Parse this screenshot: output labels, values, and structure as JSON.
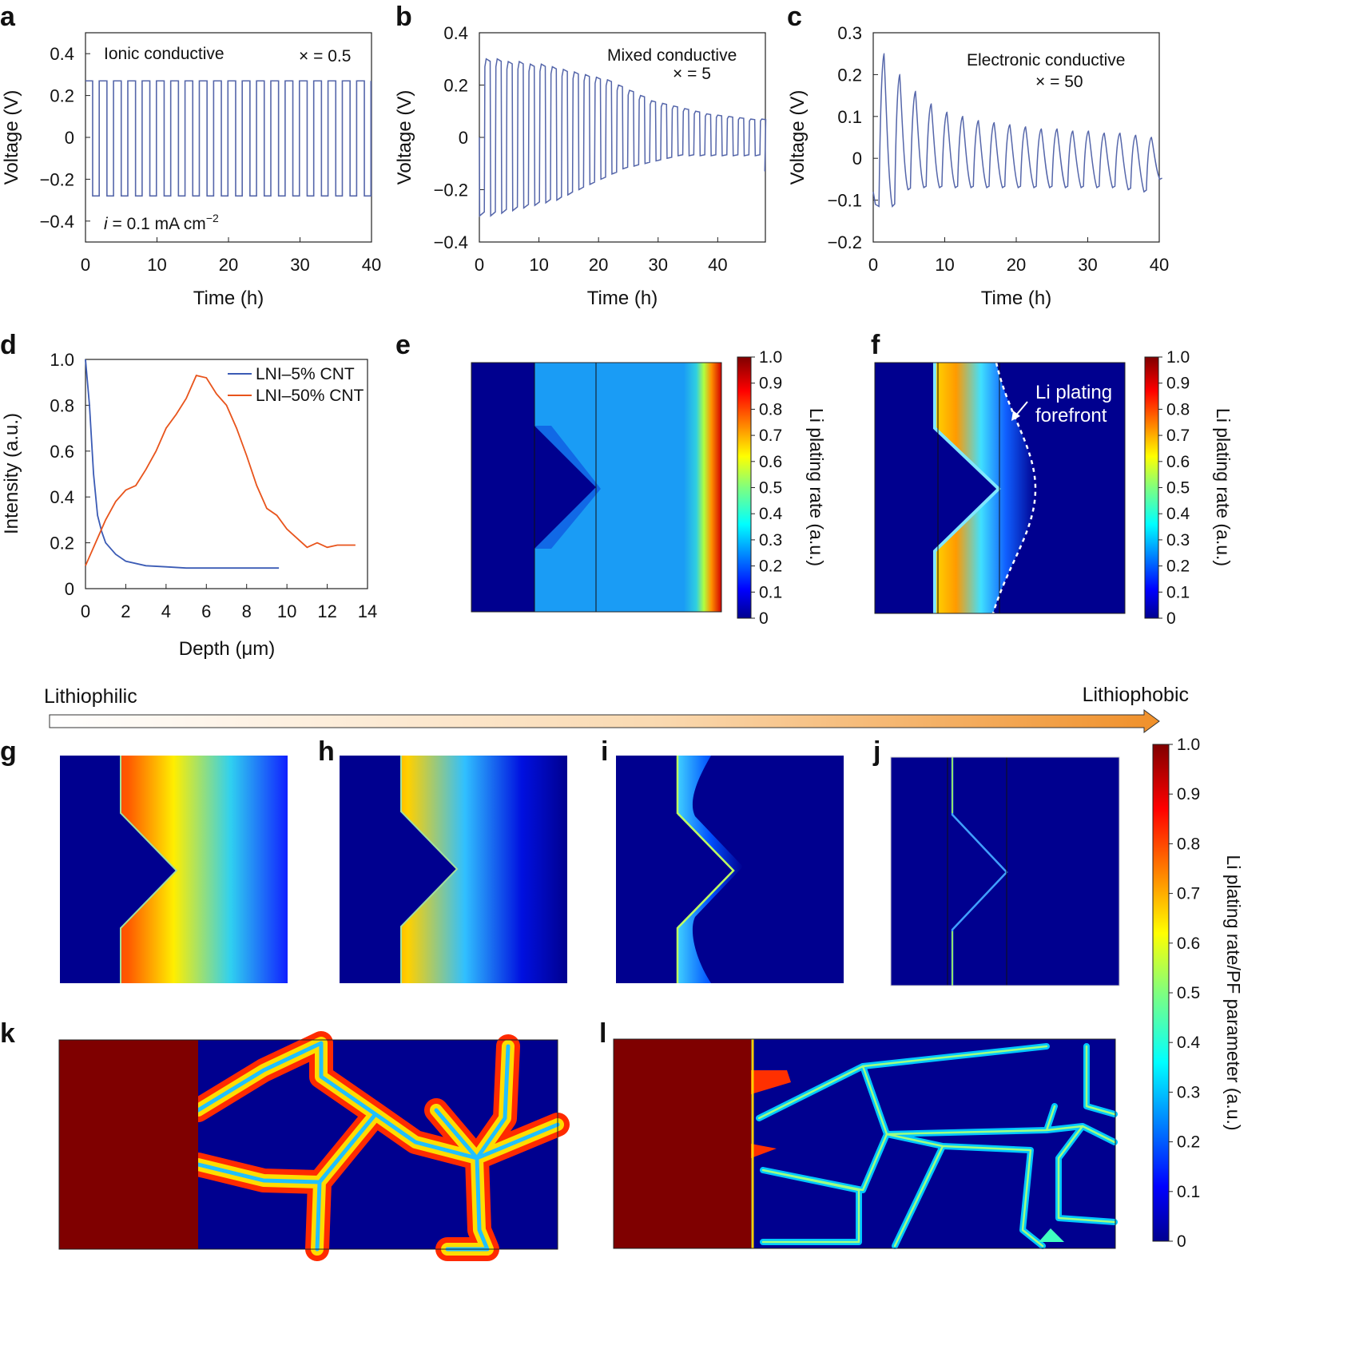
{
  "panel_labels": [
    "a",
    "b",
    "c",
    "d",
    "e",
    "f",
    "g",
    "h",
    "i",
    "j",
    "k",
    "l"
  ],
  "colors": {
    "line_blue": "#5566aa",
    "line_d_blue": "#3b5bb5",
    "line_d_orange": "#e8541c",
    "map_background": "#00008f",
    "dendrite_red": "#7f0000",
    "arrow_start": "#ffffff",
    "arrow_end": "#f0902a"
  },
  "panels": {
    "a": {
      "title": "Ionic conductive",
      "factor": "× = 0.5",
      "current_prefix": "i",
      "current_text": " = 0.1 mA cm",
      "current_sup": "−2",
      "ylabel": "Voltage (V)",
      "xlabel": "Time (h)",
      "xticks": [
        "0",
        "10",
        "20",
        "30",
        "40"
      ],
      "yticks": [
        "0.4",
        "0.2",
        "0",
        "−0.2",
        "−0.4"
      ]
    },
    "b": {
      "title": "Mixed conductive",
      "factor": "× = 5",
      "ylabel": "Voltage (V)",
      "xlabel": "Time (h)",
      "xticks": [
        "0",
        "10",
        "20",
        "30",
        "40"
      ],
      "yticks": [
        "0.4",
        "0.2",
        "0",
        "−0.2",
        "−0.4"
      ]
    },
    "c": {
      "title": "Electronic conductive",
      "factor": "× = 50",
      "ylabel": "Voltage (V)",
      "xlabel": "Time (h)",
      "xticks": [
        "0",
        "10",
        "20",
        "30",
        "40"
      ],
      "yticks": [
        "0.3",
        "0.2",
        "0.1",
        "0",
        "−0.1",
        "−0.2"
      ]
    },
    "d": {
      "ylabel": "Intensity (a.u.)",
      "xlabel": "Depth (μm)",
      "xticks": [
        "0",
        "2",
        "4",
        "6",
        "8",
        "10",
        "12",
        "14"
      ],
      "yticks": [
        "1.0",
        "0.8",
        "0.6",
        "0.4",
        "0.2",
        "0"
      ]
    },
    "f": {
      "annotation_line1": "Li plating",
      "annotation_line2": "forefront"
    }
  },
  "colorbar_small": {
    "label": "Li plating rate (a.u.)",
    "ticks": [
      "1.0",
      "0.9",
      "0.8",
      "0.7",
      "0.6",
      "0.5",
      "0.4",
      "0.3",
      "0.2",
      "0.1",
      "0"
    ]
  },
  "colorbar_large": {
    "label": "Li plating rate/PF parameter (a.u.)",
    "ticks": [
      "1.0",
      "0.9",
      "0.8",
      "0.7",
      "0.6",
      "0.5",
      "0.4",
      "0.3",
      "0.2",
      "0.1",
      "0"
    ]
  },
  "gradient_arrow": {
    "left_label": "Lithiophilic",
    "right_label": "Lithiophobic"
  },
  "chart_data": [
    {
      "panel": "a",
      "type": "line",
      "title": "Ionic conductive",
      "xlabel": "Time (h)",
      "ylabel": "Voltage (V)",
      "xlim": [
        0,
        40
      ],
      "ylim": [
        -0.5,
        0.5
      ],
      "series": [
        {
          "cycles": 20,
          "period_h": 2,
          "plating_V": 0.27,
          "stripping_V": -0.28,
          "waveform": "square"
        }
      ]
    },
    {
      "panel": "b",
      "type": "line",
      "title": "Mixed conductive",
      "xlabel": "Time (h)",
      "ylabel": "Voltage (V)",
      "xlim": [
        0,
        48
      ],
      "ylim": [
        -0.4,
        0.4
      ],
      "series": [
        {
          "cycles": 26,
          "period_h": 1.85,
          "upper_V": [
            0.3,
            0.3,
            0.29,
            0.29,
            0.28,
            0.28,
            0.27,
            0.26,
            0.25,
            0.24,
            0.23,
            0.22,
            0.2,
            0.18,
            0.16,
            0.14,
            0.13,
            0.12,
            0.11,
            0.1,
            0.09,
            0.085,
            0.08,
            0.075,
            0.07,
            0.07
          ],
          "lower_V": [
            -0.3,
            -0.3,
            -0.29,
            -0.28,
            -0.27,
            -0.26,
            -0.25,
            -0.24,
            -0.22,
            -0.2,
            -0.18,
            -0.16,
            -0.14,
            -0.12,
            -0.11,
            -0.1,
            -0.09,
            -0.08,
            -0.07,
            -0.07,
            -0.07,
            -0.07,
            -0.07,
            -0.07,
            -0.07,
            -0.07
          ]
        }
      ]
    },
    {
      "panel": "c",
      "type": "line",
      "title": "Electronic conductive",
      "xlabel": "Time (h)",
      "ylabel": "Voltage (V)",
      "xlim": [
        0,
        40
      ],
      "ylim": [
        -0.2,
        0.3
      ],
      "series": [
        {
          "cycles": 18,
          "period_h": 2.2,
          "peak_V": [
            0.25,
            0.2,
            0.16,
            0.13,
            0.11,
            0.1,
            0.09,
            0.085,
            0.08,
            0.075,
            0.07,
            0.07,
            0.065,
            0.065,
            0.06,
            0.06,
            0.055,
            0.05
          ],
          "trough_V": [
            -0.115,
            -0.075,
            -0.07,
            -0.07,
            -0.07,
            -0.07,
            -0.07,
            -0.07,
            -0.07,
            -0.07,
            -0.07,
            -0.07,
            -0.07,
            -0.07,
            -0.07,
            -0.075,
            -0.08,
            -0.05
          ]
        }
      ]
    },
    {
      "panel": "d",
      "type": "line",
      "xlabel": "Depth (μm)",
      "ylabel": "Intensity (a.u.)",
      "xlim": [
        0,
        14
      ],
      "ylim": [
        0,
        1.0
      ],
      "legend": "top-right",
      "series": [
        {
          "name": "LNI–5% CNT",
          "x": [
            0,
            0.2,
            0.4,
            0.6,
            0.8,
            1.0,
            1.5,
            2,
            3,
            4,
            5,
            6,
            7,
            8,
            9,
            9.6
          ],
          "y": [
            1.0,
            0.8,
            0.5,
            0.32,
            0.25,
            0.2,
            0.15,
            0.12,
            0.1,
            0.095,
            0.09,
            0.09,
            0.09,
            0.09,
            0.09,
            0.09
          ]
        },
        {
          "name": "LNI–50% CNT",
          "x": [
            0,
            0.5,
            1,
            1.5,
            2,
            2.5,
            3,
            3.5,
            4,
            4.5,
            5,
            5.5,
            6,
            6.5,
            7,
            7.5,
            8,
            8.5,
            9,
            9.5,
            10,
            10.5,
            11,
            11.5,
            12,
            12.5,
            13,
            13.4
          ],
          "y": [
            0.1,
            0.2,
            0.3,
            0.38,
            0.43,
            0.45,
            0.52,
            0.6,
            0.7,
            0.76,
            0.83,
            0.93,
            0.92,
            0.85,
            0.8,
            0.7,
            0.58,
            0.45,
            0.35,
            0.32,
            0.26,
            0.22,
            0.18,
            0.2,
            0.18,
            0.19,
            0.19,
            0.19
          ]
        }
      ]
    }
  ]
}
